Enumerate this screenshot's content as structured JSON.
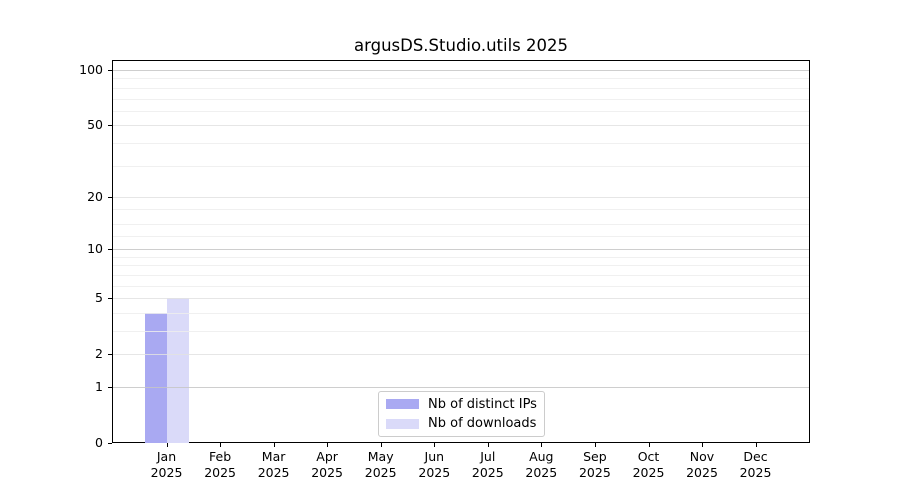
{
  "title": "argusDS.Studio.utils 2025",
  "chart_data": {
    "type": "bar",
    "title": "argusDS.Studio.utils 2025",
    "categories": [
      "Jan 2025",
      "Feb 2025",
      "Mar 2025",
      "Apr 2025",
      "May 2025",
      "Jun 2025",
      "Jul 2025",
      "Aug 2025",
      "Sep 2025",
      "Oct 2025",
      "Nov 2025",
      "Dec 2025"
    ],
    "x_tick_months": [
      "Jan",
      "Feb",
      "Mar",
      "Apr",
      "May",
      "Jun",
      "Jul",
      "Aug",
      "Sep",
      "Oct",
      "Nov",
      "Dec"
    ],
    "x_tick_year": "2025",
    "series": [
      {
        "name": "Nb of distinct IPs",
        "color": "#a9a9f2",
        "values": [
          4,
          0,
          0,
          0,
          0,
          0,
          0,
          0,
          0,
          0,
          0,
          0
        ]
      },
      {
        "name": "Nb of downloads",
        "color": "#dadaf9",
        "values": [
          5,
          0,
          0,
          0,
          0,
          0,
          0,
          0,
          0,
          0,
          0,
          0
        ]
      }
    ],
    "yscale": "log10(1+v)",
    "ylim": [
      0,
      113
    ],
    "y_ticks": [
      0,
      1,
      2,
      5,
      10,
      20,
      50,
      100
    ],
    "y_emphasized_gridlines": [
      1,
      10,
      100
    ],
    "y_labeled_gridlines": [
      2,
      5,
      20,
      50
    ],
    "y_minor_gridlines": [
      3,
      4,
      6,
      7,
      8,
      9,
      12,
      14,
      17,
      30,
      40,
      60,
      70,
      80,
      90
    ],
    "grid": "horizontal only",
    "legend_position": "lower center, inside axes",
    "xlabel": "",
    "ylabel": ""
  },
  "legend": {
    "items": [
      {
        "label": "Nb of distinct IPs",
        "color": "#a9a9f2"
      },
      {
        "label": "Nb of downloads",
        "color": "#dadaf9"
      }
    ]
  },
  "colors": {
    "background": "#ffffff",
    "axis": "#000000",
    "grid_major": "#c6c6c6",
    "grid_minor": "#ededed",
    "legend_border": "#cccccc"
  }
}
